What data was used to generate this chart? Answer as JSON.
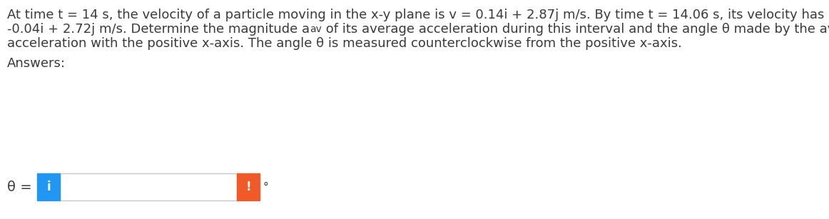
{
  "line1": "At time t = 14 s, the velocity of a particle moving in the x-y plane is v = 0.14i + 2.87j m/s. By time t = 14.06 s, its velocity has become",
  "line2a": "-0.04i + 2.72j m/s. Determine the magnitude a",
  "line2sub": "av",
  "line2b": " of its average acceleration during this interval and the angle θ made by the average",
  "line3": "acceleration with the positive x-axis. The angle θ is measured counterclockwise from the positive x-axis.",
  "answers_label": "Answers:",
  "theta_label": "θ =",
  "degree_symbol": "°",
  "blue_color": "#2196F3",
  "orange_color": "#F05A28",
  "input_box_color": "#FFFFFF",
  "input_border_color": "#C8C8C8",
  "background_color": "#FFFFFF",
  "text_color": "#3a3a3a",
  "blue_icon": "i",
  "orange_icon": "!",
  "fig_width": 11.62,
  "fig_height": 3.07,
  "text_fontsize": 13.0,
  "sub_fontsize": 10.0,
  "icon_fontsize": 12.0
}
